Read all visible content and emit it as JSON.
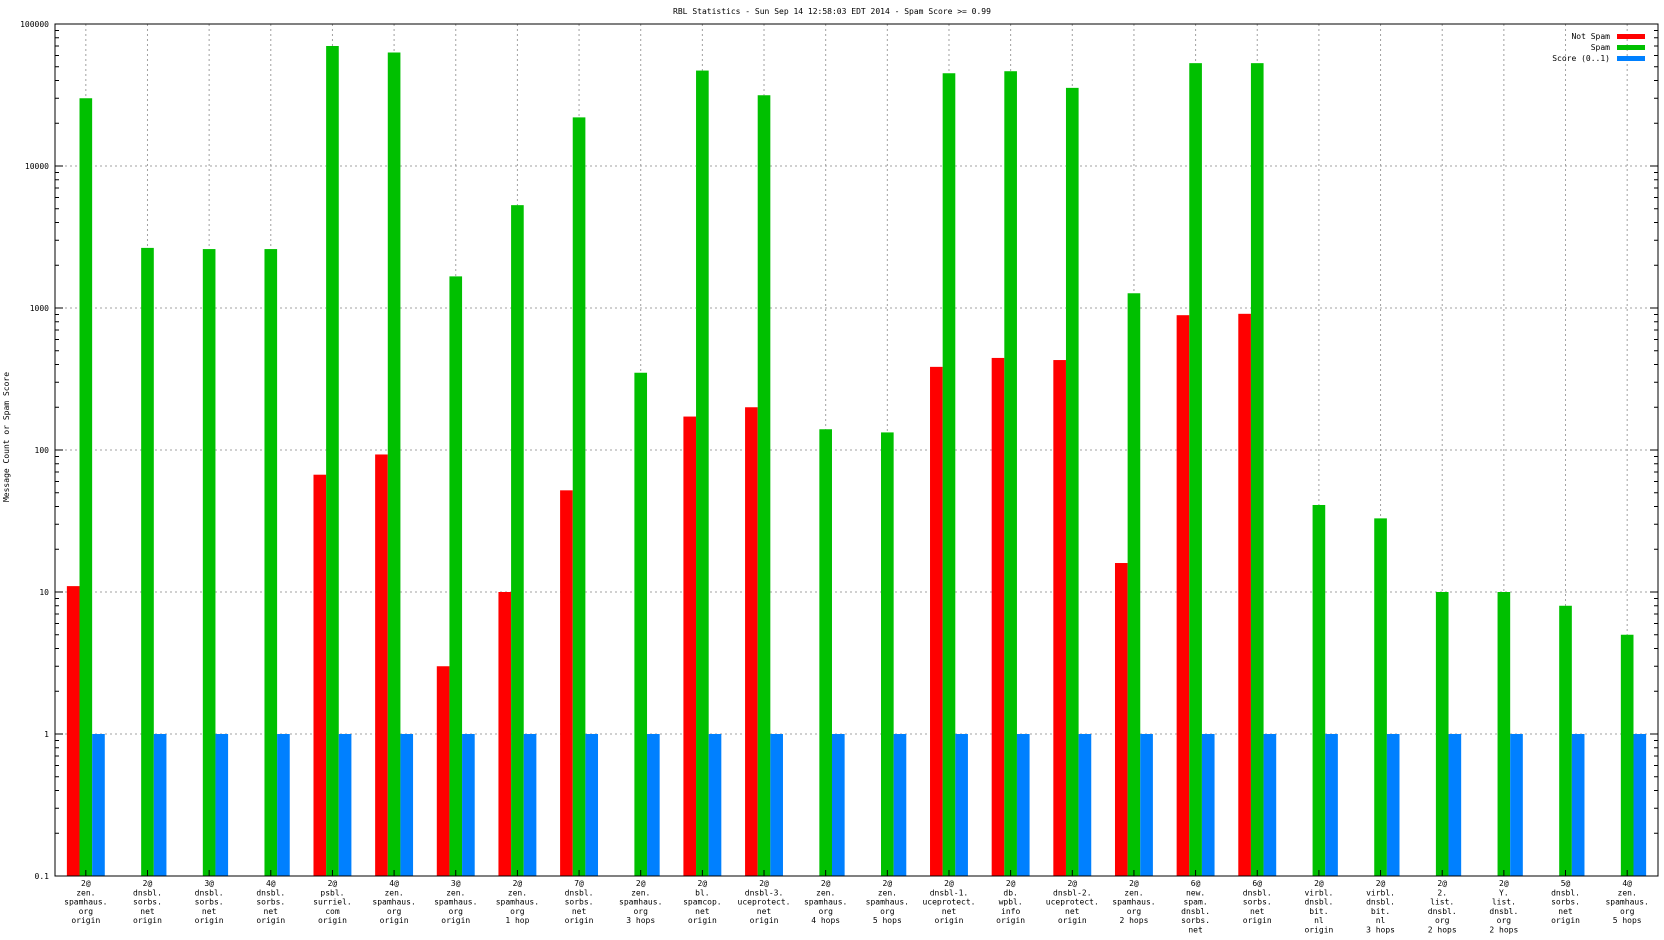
{
  "chart_data": {
    "type": "bar",
    "title": "RBL Statistics - Sun Sep 14 12:58:03 EDT 2014 - Spam Score >= 0.99",
    "xlabel": "",
    "ylabel": "Message Count or Spam Score",
    "yscale": "log",
    "ylim": [
      0.1,
      100000
    ],
    "yticks": [
      "0.1",
      "1",
      "10",
      "100",
      "1000",
      "10000",
      "100000"
    ],
    "grid": true,
    "legend_position": "top-right",
    "categories": [
      [
        "2@",
        "zen.",
        "spamhaus.",
        "org",
        "origin"
      ],
      [
        "2@",
        "dnsbl.",
        "sorbs.",
        "net",
        "origin"
      ],
      [
        "3@",
        "dnsbl.",
        "sorbs.",
        "net",
        "origin"
      ],
      [
        "4@",
        "dnsbl.",
        "sorbs.",
        "net",
        "origin"
      ],
      [
        "2@",
        "psbl.",
        "surriel.",
        "com",
        "origin"
      ],
      [
        "4@",
        "zen.",
        "spamhaus.",
        "org",
        "origin"
      ],
      [
        "3@",
        "zen.",
        "spamhaus.",
        "org",
        "origin"
      ],
      [
        "2@",
        "zen.",
        "spamhaus.",
        "org",
        "1 hop"
      ],
      [
        "7@",
        "dnsbl.",
        "sorbs.",
        "net",
        "origin"
      ],
      [
        "2@",
        "zen.",
        "spamhaus.",
        "org",
        "3 hops"
      ],
      [
        "2@",
        "bl.",
        "spamcop.",
        "net",
        "origin"
      ],
      [
        "2@",
        "dnsbl-3.",
        "uceprotect.",
        "net",
        "origin"
      ],
      [
        "2@",
        "zen.",
        "spamhaus.",
        "org",
        "4 hops"
      ],
      [
        "2@",
        "zen.",
        "spamhaus.",
        "org",
        "5 hops"
      ],
      [
        "2@",
        "dnsbl-1.",
        "uceprotect.",
        "net",
        "origin"
      ],
      [
        "2@",
        "db.",
        "wpbl.",
        "info",
        "origin"
      ],
      [
        "2@",
        "dnsbl-2.",
        "uceprotect.",
        "net",
        "origin"
      ],
      [
        "2@",
        "zen.",
        "spamhaus.",
        "org",
        "2 hops"
      ],
      [
        "6@",
        "new.",
        "spam.",
        "dnsbl.",
        "sorbs.",
        "net",
        "origin"
      ],
      [
        "6@",
        "dnsbl.",
        "sorbs.",
        "net",
        "origin"
      ],
      [
        "2@",
        "virbl.",
        "dnsbl.",
        "bit.",
        "nl",
        "origin"
      ],
      [
        "2@",
        "virbl.",
        "dnsbl.",
        "bit.",
        "nl",
        "3 hops"
      ],
      [
        "2@",
        "2.",
        "list.",
        "dnsbl.",
        "org",
        "2 hops"
      ],
      [
        "2@",
        "Y.",
        "list.",
        "dnsbl.",
        "org",
        "2 hops"
      ],
      [
        "5@",
        "dnsbl.",
        "sorbs.",
        "net",
        "origin"
      ],
      [
        "4@",
        "zen.",
        "spamhaus.",
        "org",
        "5 hops"
      ]
    ],
    "series": [
      {
        "name": "Not Spam",
        "color": "#ff0000",
        "values": [
          11,
          0,
          0,
          0,
          67,
          93,
          3,
          10,
          52,
          0,
          172,
          200,
          0,
          0,
          385,
          445,
          430,
          16,
          890,
          910,
          0,
          0,
          0,
          0,
          0,
          0
        ]
      },
      {
        "name": "Spam",
        "color": "#00c000",
        "values": [
          30000,
          2650,
          2600,
          2600,
          70000,
          63000,
          1670,
          5300,
          22000,
          350,
          47000,
          31500,
          140,
          133,
          45000,
          46500,
          35500,
          1270,
          53000,
          53000,
          41,
          33,
          10,
          10,
          8,
          5
        ]
      },
      {
        "name": "Score (0..1)",
        "color": "#0080ff",
        "values": [
          1,
          1,
          1,
          1,
          1,
          1,
          1,
          1,
          1,
          1,
          1,
          1,
          1,
          1,
          1,
          1,
          1,
          1,
          1,
          1,
          1,
          1,
          1,
          1,
          1,
          1
        ]
      }
    ]
  }
}
